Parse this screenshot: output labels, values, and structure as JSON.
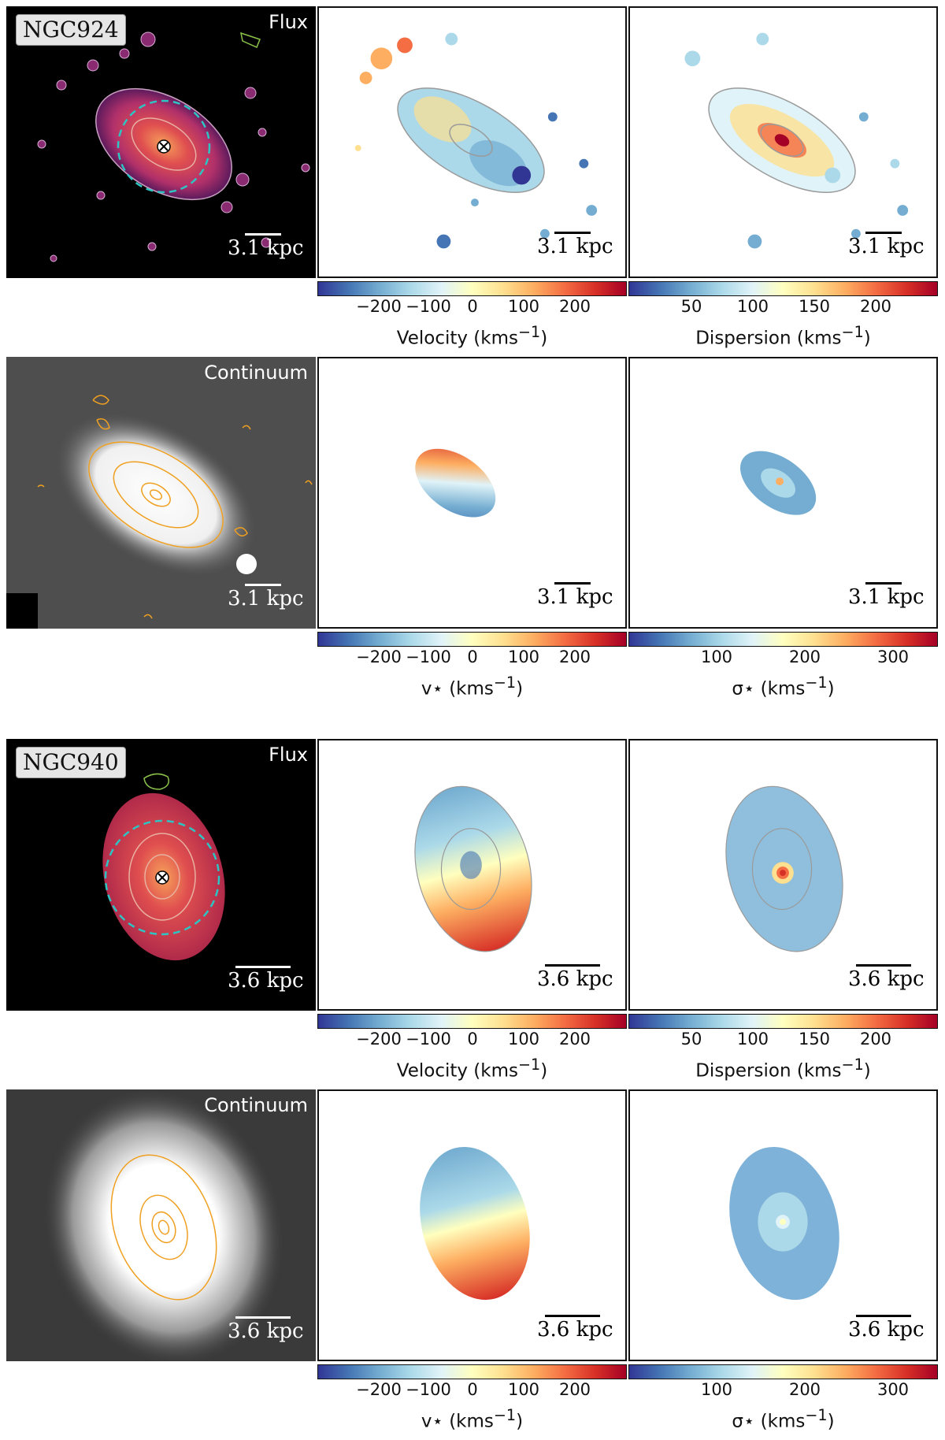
{
  "galaxies": [
    {
      "name": "NGC924",
      "flux_label": "Flux",
      "continuum_label": "Continuum",
      "scale_label": "3.1 kpc",
      "gas_velocity_cbar": {
        "ticks": [
          "−200",
          "−100",
          "0",
          "100",
          "200"
        ],
        "title_text": "Velocity (kms",
        "title_sup": "−1",
        "title_close": ")"
      },
      "gas_dispersion_cbar": {
        "ticks": [
          "50",
          "100",
          "150",
          "200"
        ],
        "title_text": "Dispersion (kms",
        "title_sup": "−1",
        "title_close": ")"
      },
      "stellar_velocity_cbar": {
        "ticks": [
          "−200",
          "−100",
          "0",
          "100",
          "200"
        ],
        "title_text": "v⋆ (kms",
        "title_sup": "−1",
        "title_close": ")"
      },
      "stellar_dispersion_cbar": {
        "ticks": [
          "100",
          "200",
          "300"
        ],
        "title_text": "σ⋆ (kms",
        "title_sup": "−1",
        "title_close": ")"
      }
    },
    {
      "name": "NGC940",
      "flux_label": "Flux",
      "continuum_label": "Continuum",
      "scale_label": "3.6 kpc",
      "gas_velocity_cbar": {
        "ticks": [
          "−200",
          "−100",
          "0",
          "100",
          "200"
        ],
        "title_text": "Velocity (kms",
        "title_sup": "−1",
        "title_close": ")"
      },
      "gas_dispersion_cbar": {
        "ticks": [
          "50",
          "100",
          "150",
          "200"
        ],
        "title_text": "Dispersion (kms",
        "title_sup": "−1",
        "title_close": ")"
      },
      "stellar_velocity_cbar": {
        "ticks": [
          "−200",
          "−100",
          "0",
          "100",
          "200"
        ],
        "title_text": "v⋆ (kms",
        "title_sup": "−1",
        "title_close": ")"
      },
      "stellar_dispersion_cbar": {
        "ticks": [
          "100",
          "200",
          "300"
        ],
        "title_text": "σ⋆ (kms",
        "title_sup": "−1",
        "title_close": ")"
      }
    }
  ],
  "colormaps": {
    "velocity": [
      "#313695",
      "#4575b4",
      "#74add1",
      "#abd9e9",
      "#e0f3f8",
      "#ffffbf",
      "#fee090",
      "#fdae61",
      "#f46d43",
      "#d73027",
      "#a50026"
    ],
    "flux": [
      "#000000",
      "#5a1a5c",
      "#b0306a",
      "#e04f4f",
      "#f6a25a"
    ]
  },
  "colors": {
    "contour_orange": "#f0a020",
    "aperture_cyan": "#2ec4c4",
    "contour_grey": "#9a9a9a",
    "contour_green": "#8bc34a"
  }
}
